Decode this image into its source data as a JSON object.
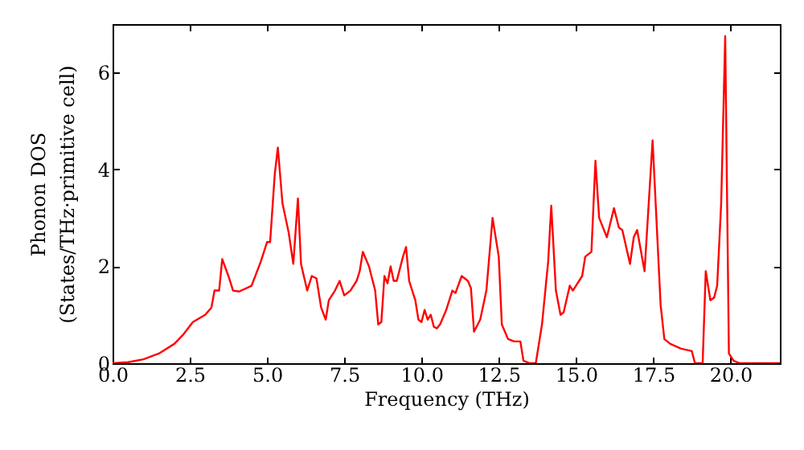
{
  "chart_data": {
    "type": "line",
    "xlabel": "Frequency (THz)",
    "ylabel": "Phonon DOS\n(States/THz·primitive cell)",
    "xlim": [
      0,
      21.6
    ],
    "ylim": [
      0,
      7
    ],
    "xticks": [
      {
        "value": 0,
        "label": "0.0"
      },
      {
        "value": 2.5,
        "label": "2.5"
      },
      {
        "value": 5,
        "label": "5.0"
      },
      {
        "value": 7.5,
        "label": "7.5"
      },
      {
        "value": 10,
        "label": "10.0"
      },
      {
        "value": 12.5,
        "label": "12.5"
      },
      {
        "value": 15,
        "label": "15.0"
      },
      {
        "value": 17.5,
        "label": "17.5"
      },
      {
        "value": 20,
        "label": "20.0"
      }
    ],
    "yticks": [
      0,
      2,
      4,
      6
    ],
    "x": [
      0,
      0.5,
      1.0,
      1.5,
      2.0,
      2.3,
      2.6,
      3.0,
      3.2,
      3.3,
      3.45,
      3.55,
      3.75,
      3.9,
      4.1,
      4.5,
      4.8,
      5.0,
      5.1,
      5.25,
      5.35,
      5.5,
      5.7,
      5.85,
      6.0,
      6.1,
      6.3,
      6.45,
      6.6,
      6.75,
      6.9,
      7.0,
      7.2,
      7.35,
      7.5,
      7.7,
      7.9,
      8.0,
      8.1,
      8.3,
      8.5,
      8.6,
      8.7,
      8.8,
      8.9,
      9.0,
      9.1,
      9.2,
      9.4,
      9.5,
      9.6,
      9.8,
      9.9,
      10.0,
      10.1,
      10.2,
      10.3,
      10.4,
      10.5,
      10.6,
      10.8,
      11.0,
      11.1,
      11.3,
      11.5,
      11.6,
      11.7,
      11.9,
      12.0,
      12.1,
      12.3,
      12.5,
      12.6,
      12.8,
      13.0,
      13.2,
      13.3,
      13.5,
      13.7,
      13.9,
      14.1,
      14.2,
      14.35,
      14.5,
      14.6,
      14.8,
      14.9,
      15.0,
      15.2,
      15.3,
      15.5,
      15.63,
      15.75,
      16.0,
      16.23,
      16.39,
      16.5,
      16.75,
      16.87,
      16.98,
      17.22,
      17.48,
      17.74,
      17.86,
      18.05,
      18.4,
      18.75,
      18.85,
      19.1,
      19.2,
      19.35,
      19.47,
      19.57,
      19.7,
      19.83,
      19.95,
      20.1,
      20.3,
      21.6
    ],
    "series": [
      {
        "color": "#ff0000",
        "values": [
          0,
          0.02,
          0.08,
          0.2,
          0.4,
          0.6,
          0.85,
          1.0,
          1.15,
          1.5,
          1.5,
          2.15,
          1.8,
          1.5,
          1.48,
          1.6,
          2.1,
          2.5,
          2.5,
          3.9,
          4.45,
          3.3,
          2.7,
          2.05,
          3.4,
          2.05,
          1.5,
          1.8,
          1.75,
          1.15,
          0.9,
          1.3,
          1.5,
          1.7,
          1.4,
          1.5,
          1.7,
          1.9,
          2.3,
          2.0,
          1.5,
          0.8,
          0.85,
          1.8,
          1.65,
          2.0,
          1.7,
          1.7,
          2.2,
          2.4,
          1.7,
          1.3,
          0.9,
          0.85,
          1.1,
          0.9,
          1.0,
          0.75,
          0.72,
          0.8,
          1.1,
          1.5,
          1.45,
          1.8,
          1.7,
          1.55,
          0.65,
          0.9,
          1.2,
          1.5,
          3.0,
          2.2,
          0.8,
          0.5,
          0.45,
          0.45,
          0.05,
          0,
          0,
          0.8,
          2.1,
          3.25,
          1.5,
          1.0,
          1.05,
          1.6,
          1.5,
          1.6,
          1.8,
          2.2,
          2.3,
          4.18,
          3.0,
          2.6,
          3.2,
          2.8,
          2.75,
          2.05,
          2.6,
          2.75,
          1.9,
          4.6,
          1.2,
          0.5,
          0.4,
          0.3,
          0.25,
          0,
          0,
          1.9,
          1.3,
          1.35,
          1.6,
          3.3,
          6.75,
          0.2,
          0.05,
          0,
          0
        ]
      }
    ]
  }
}
